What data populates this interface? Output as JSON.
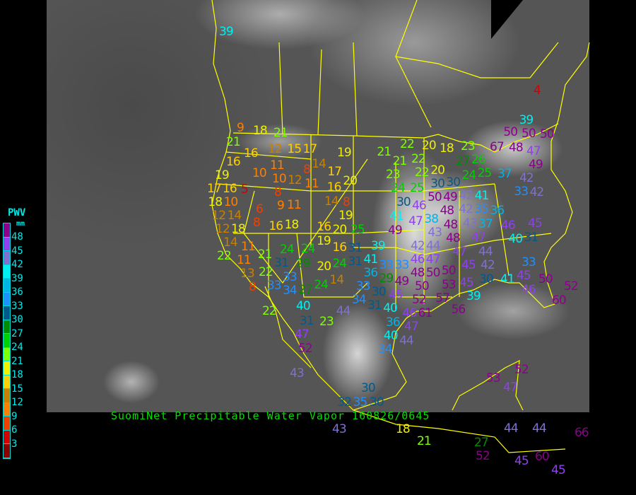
{
  "title": "SuomiNet Precipitable Water Vapor 160826/0645",
  "legend": {
    "title": "PWV",
    "unit": "mm",
    "labels": [
      "48",
      "45",
      "42",
      "39",
      "36",
      "33",
      "30",
      "27",
      "24",
      "21",
      "18",
      "15",
      "12",
      "9",
      "6",
      "3"
    ],
    "colors": [
      "#8c008c",
      "#9040f0",
      "#8070d0",
      "#00f0f0",
      "#00b4e6",
      "#1e90ff",
      "#005a8c",
      "#008c00",
      "#00d000",
      "#80ff00",
      "#f0f000",
      "#ffd000",
      "#c88000",
      "#ff8000",
      "#f04000",
      "#d40000",
      "#8b0000"
    ]
  },
  "map": {
    "background": "GOES infrared satellite image",
    "border_color": "#ffff00",
    "stations": [
      39,
      9,
      18,
      21,
      21,
      16,
      12,
      15,
      17,
      19,
      16,
      10,
      11,
      8,
      14,
      17,
      10,
      12,
      11,
      20,
      19,
      17,
      16,
      5,
      8,
      9,
      11,
      16,
      14,
      8,
      18,
      10,
      6,
      12,
      14,
      8,
      12,
      18,
      16,
      18,
      19,
      16,
      20,
      25,
      14,
      22,
      11,
      21,
      24,
      19,
      16,
      31,
      39,
      24,
      31,
      29,
      20,
      24,
      31,
      41,
      33,
      11,
      13,
      22,
      33,
      36,
      8,
      33,
      34,
      27,
      24,
      14,
      29,
      33,
      30,
      34,
      31,
      45,
      40,
      22,
      44,
      31,
      23,
      40,
      36,
      46,
      47,
      47,
      40,
      44,
      34,
      52,
      43,
      4,
      39,
      50,
      50,
      50,
      21,
      22,
      20,
      18,
      23,
      21,
      22,
      67,
      48,
      47,
      49,
      27,
      26,
      22,
      20,
      24,
      25,
      37,
      23,
      24,
      25,
      30,
      30,
      42,
      42,
      33,
      49,
      30,
      50,
      46,
      42,
      41,
      42,
      35,
      36,
      47,
      48,
      41,
      38,
      48,
      43,
      49,
      43,
      48,
      37,
      46,
      40,
      31,
      45,
      47,
      42,
      44,
      44,
      47,
      33,
      46,
      47,
      45,
      42,
      33,
      50,
      50,
      48,
      49,
      50,
      53,
      45,
      30,
      41,
      45,
      50,
      39,
      52,
      57,
      46,
      52,
      61,
      60,
      56,
      30,
      32,
      35,
      30,
      18,
      43,
      53,
      52,
      47,
      21,
      27,
      44,
      44,
      66,
      52,
      45,
      60,
      45
    ]
  }
}
